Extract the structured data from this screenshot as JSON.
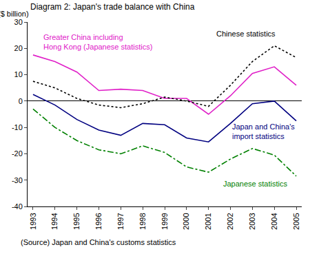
{
  "chart_data": {
    "type": "line",
    "title": "Diagram 2: Japan's trade balance with China",
    "y_label": "($ billion)",
    "annotations": [
      "(Source) Japan and China's customs statistics"
    ],
    "categories": [
      "1993",
      "1994",
      "1995",
      "1996",
      "1997",
      "1998",
      "1999",
      "2000",
      "2001",
      "2002",
      "2003",
      "2004",
      "2005"
    ],
    "series": [
      {
        "name": "Greater China including Hong Kong (Japanese statistics)",
        "color": "#e020c8",
        "line_style": "solid",
        "values": [
          17.5,
          15,
          11,
          4,
          4.5,
          4,
          1,
          1,
          -5,
          2,
          10.5,
          13,
          6
        ]
      },
      {
        "name": "Chinese statistics",
        "color": "#000000",
        "line_style": "dotted",
        "values": [
          7.5,
          5,
          1,
          -1.5,
          -2.5,
          -1,
          1.5,
          0,
          -2,
          6,
          15,
          21,
          16.5
        ]
      },
      {
        "name": "Japan and China's import statistics",
        "color": "#000080",
        "line_style": "solid",
        "values": [
          2.5,
          -1.5,
          -7,
          -11,
          -13,
          -8.5,
          -9,
          -14,
          -15.5,
          -8.5,
          -1,
          0,
          -7.5
        ]
      },
      {
        "name": "Japanese statistics",
        "color": "#008000",
        "line_style": "dashdot",
        "values": [
          -3,
          -10,
          -15,
          -18.5,
          -20,
          -17,
          -19.5,
          -25,
          -27,
          -22,
          -18,
          -20.5,
          -28.5
        ]
      }
    ],
    "ylim": [
      -40,
      30
    ],
    "yticks": [
      -40,
      -30,
      -20,
      -10,
      0,
      10,
      20,
      30
    ],
    "grid": false
  }
}
